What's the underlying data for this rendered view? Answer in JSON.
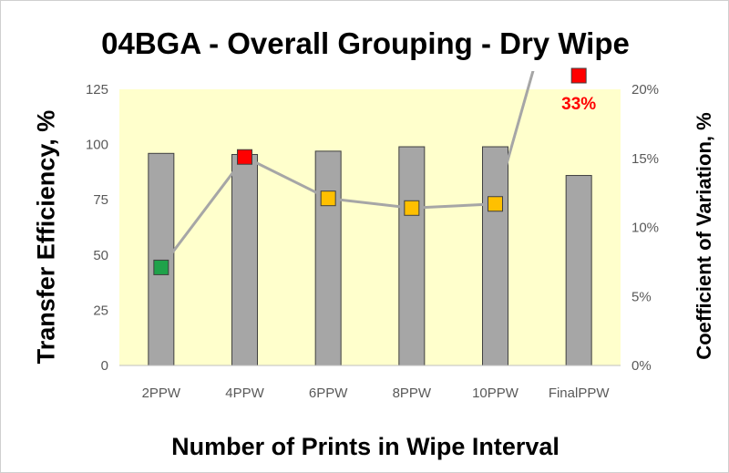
{
  "chart_data": {
    "type": "bar",
    "title": "04BGA - Overall Grouping - Dry Wipe",
    "xlabel": "Number of Prints in Wipe Interval",
    "ylabel": "Transfer Efficiency, %",
    "y2label": "Coefficient of Variation, %",
    "categories": [
      "2PPW",
      "4PPW",
      "6PPW",
      "8PPW",
      "10PPW",
      "FinalPPW"
    ],
    "ylim": [
      0,
      125
    ],
    "y2lim": [
      0,
      0.2
    ],
    "yticks": [
      "0",
      "25",
      "50",
      "75",
      "100",
      "125"
    ],
    "y2ticks": [
      "0%",
      "5%",
      "10%",
      "15%",
      "20%"
    ],
    "plot_background": "#ffffcc",
    "series": [
      {
        "type": "bar",
        "axis": "left",
        "color": "#a6a6a6",
        "values": [
          96,
          95.5,
          97,
          99,
          99,
          86
        ]
      },
      {
        "type": "line",
        "axis": "right",
        "color": "#a6a6a6",
        "values": [
          0.071,
          0.151,
          0.121,
          0.114,
          0.117,
          0.33
        ],
        "marker_colors": [
          "#1fa24a",
          "#ff0000",
          "#ffc000",
          "#ffc000",
          "#ffc000",
          "#ff0000"
        ]
      }
    ],
    "annotations": [
      {
        "text": "33%",
        "category": "FinalPPW",
        "color": "#ff0000"
      }
    ]
  }
}
